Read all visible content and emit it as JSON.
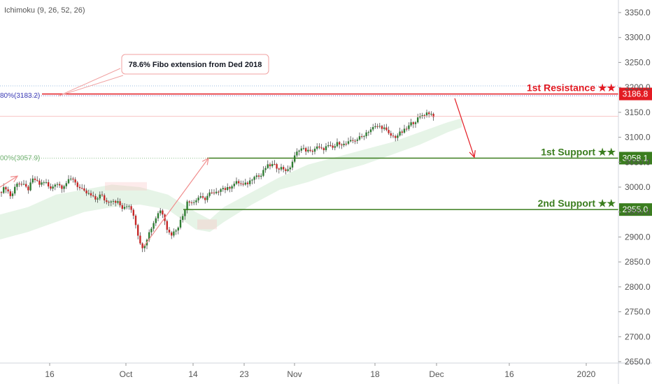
{
  "indicator": {
    "label": "Ichimoku (9, 26, 52, 26)"
  },
  "chart_data": {
    "type": "candlestick",
    "y_ticks": [
      "3350.0",
      "3300.0",
      "3250.0",
      "3200.0",
      "3150.0",
      "3100.0",
      "3050.0",
      "3000.0",
      "2950.0",
      "2900.0",
      "2850.0",
      "2800.0",
      "2750.0",
      "2700.0",
      "2650.0"
    ],
    "x_ticks": [
      "16",
      "Oct",
      "14",
      "23",
      "Nov",
      "18",
      "Dec",
      "16",
      "2020"
    ],
    "ylim": [
      2645,
      3380
    ],
    "levels": [
      {
        "name": "resistance1",
        "label": "1st Resistance ★★",
        "value": 3186.8,
        "tag": "3186.8",
        "color": "#e31b23"
      },
      {
        "name": "support1",
        "label": "1st Support ★★",
        "value": 3058.1,
        "tag": "3058.1",
        "color": "#3a7d1e"
      },
      {
        "name": "support2",
        "label": "2nd Support ★★",
        "value": 2955.0,
        "tag": "2955.0",
        "color": "#3a7d1e"
      }
    ],
    "fibs": [
      {
        "label": "80%(3183.2)",
        "value": 3183.2,
        "color": "#3b3bb5"
      },
      {
        "label": "00%(3057.9)",
        "value": 3057.9,
        "color": "#6fb06f"
      }
    ],
    "callout": {
      "text": "78.6% Fibo extension from Ded 2018"
    },
    "close_points": [
      [
        0,
        2990
      ],
      [
        8,
        3000
      ],
      [
        16,
        2980
      ],
      [
        24,
        3010
      ],
      [
        32,
        3005
      ],
      [
        40,
        2995
      ],
      [
        48,
        3018
      ],
      [
        56,
        3005
      ],
      [
        64,
        3012
      ],
      [
        72,
        2995
      ],
      [
        80,
        3010
      ],
      [
        88,
        3000
      ],
      [
        96,
        3010
      ],
      [
        104,
        3018
      ],
      [
        112,
        3000
      ],
      [
        120,
        2990
      ],
      [
        128,
        2985
      ],
      [
        136,
        2975
      ],
      [
        144,
        2985
      ],
      [
        152,
        2970
      ],
      [
        160,
        2975
      ],
      [
        168,
        2970
      ],
      [
        176,
        2955
      ],
      [
        184,
        2965
      ],
      [
        190,
        2950
      ],
      [
        196,
        2915
      ],
      [
        200,
        2885
      ],
      [
        205,
        2880
      ],
      [
        212,
        2905
      ],
      [
        220,
        2930
      ],
      [
        228,
        2955
      ],
      [
        234,
        2945
      ],
      [
        240,
        2910
      ],
      [
        246,
        2905
      ],
      [
        254,
        2920
      ],
      [
        262,
        2945
      ],
      [
        268,
        2975
      ],
      [
        276,
        2968
      ],
      [
        284,
        2980
      ],
      [
        292,
        2975
      ],
      [
        300,
        2988
      ],
      [
        308,
        2985
      ],
      [
        316,
        3000
      ],
      [
        324,
        2995
      ],
      [
        332,
        3005
      ],
      [
        340,
        3010
      ],
      [
        348,
        3003
      ],
      [
        356,
        3010
      ],
      [
        364,
        3025
      ],
      [
        372,
        3020
      ],
      [
        380,
        3040
      ],
      [
        388,
        3045
      ],
      [
        396,
        3040
      ],
      [
        404,
        3038
      ],
      [
        412,
        3032
      ],
      [
        420,
        3058
      ],
      [
        428,
        3078
      ],
      [
        436,
        3075
      ],
      [
        444,
        3070
      ],
      [
        452,
        3080
      ],
      [
        460,
        3075
      ],
      [
        468,
        3082
      ],
      [
        476,
        3078
      ],
      [
        484,
        3090
      ],
      [
        492,
        3085
      ],
      [
        500,
        3090
      ],
      [
        508,
        3095
      ],
      [
        516,
        3100
      ],
      [
        524,
        3110
      ],
      [
        532,
        3118
      ],
      [
        540,
        3122
      ],
      [
        548,
        3120
      ],
      [
        556,
        3105
      ],
      [
        564,
        3100
      ],
      [
        572,
        3108
      ],
      [
        580,
        3115
      ],
      [
        588,
        3128
      ],
      [
        596,
        3135
      ],
      [
        604,
        3145
      ],
      [
        612,
        3150
      ],
      [
        618,
        3145
      ],
      [
        622,
        3142
      ]
    ],
    "cloud_upper": [
      [
        0,
        2945
      ],
      [
        40,
        2960
      ],
      [
        80,
        2985
      ],
      [
        120,
        2995
      ],
      [
        160,
        3005
      ],
      [
        200,
        3000
      ],
      [
        240,
        2985
      ],
      [
        280,
        2950
      ],
      [
        300,
        2935
      ],
      [
        320,
        2960
      ],
      [
        360,
        2990
      ],
      [
        400,
        3020
      ],
      [
        440,
        3045
      ],
      [
        480,
        3060
      ],
      [
        520,
        3075
      ],
      [
        560,
        3090
      ],
      [
        600,
        3110
      ],
      [
        640,
        3130
      ],
      [
        660,
        3138
      ]
    ],
    "cloud_lower": [
      [
        0,
        2895
      ],
      [
        40,
        2910
      ],
      [
        80,
        2930
      ],
      [
        120,
        2950
      ],
      [
        160,
        2960
      ],
      [
        200,
        2965
      ],
      [
        240,
        2955
      ],
      [
        280,
        2915
      ],
      [
        300,
        2910
      ],
      [
        320,
        2930
      ],
      [
        360,
        2965
      ],
      [
        400,
        2995
      ],
      [
        440,
        3010
      ],
      [
        480,
        3030
      ],
      [
        520,
        3045
      ],
      [
        560,
        3065
      ],
      [
        600,
        3085
      ],
      [
        640,
        3110
      ],
      [
        660,
        3120
      ]
    ],
    "arrow_up_1": {
      "from": [
        205,
        2880
      ],
      "to": [
        298,
        3058
      ]
    },
    "arrow_up_2": {
      "from": [
        0,
        3000
      ],
      "to": [
        25,
        3022
      ]
    },
    "arrow_down": {
      "from": [
        650,
        3178
      ],
      "to": [
        678,
        3060
      ]
    },
    "callout_anchor": [
      84,
      3183
    ]
  }
}
